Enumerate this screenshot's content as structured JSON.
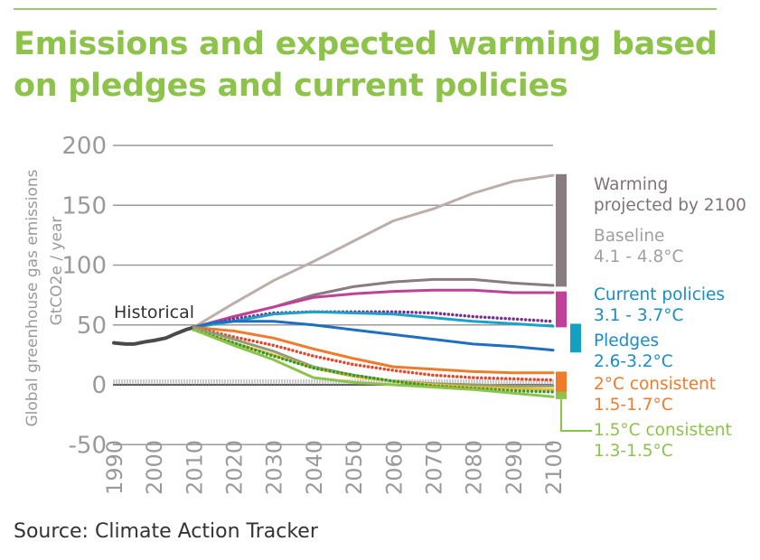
{
  "title_lines": [
    "Emissions and expected warming based",
    "on pledges and current policies"
  ],
  "source": "Source: Climate Action Tracker",
  "chart_data": {
    "type": "line",
    "title": "Emissions and expected warming based on pledges and current policies",
    "ylabel_line1": "Global greenhouse gas emissions",
    "ylabel_line2": "GtCO2e / year",
    "ylim": [
      -50,
      200
    ],
    "xlim": [
      1990,
      2100
    ],
    "yticks": [
      "200",
      "150",
      "100",
      "50",
      "0",
      "-50"
    ],
    "ytick_values": [
      200,
      150,
      100,
      50,
      0,
      -50
    ],
    "xticks": [
      "1990",
      "2000",
      "2010",
      "2020",
      "2030",
      "2040",
      "2050",
      "2060",
      "2070",
      "2080",
      "2090",
      "2100"
    ],
    "grid": true,
    "annotation": "Historical",
    "series": [
      {
        "name": "Historical",
        "color": "#4a4a4a",
        "style": "solid",
        "x": [
          1990,
          1993,
          1995,
          1998,
          2000,
          2003,
          2005,
          2008,
          2010
        ],
        "y": [
          35,
          34,
          34,
          36,
          37,
          39,
          42,
          46,
          48
        ]
      },
      {
        "name": "Baseline",
        "color": "#bcaea8",
        "style": "solid",
        "x": [
          2010,
          2020,
          2030,
          2040,
          2050,
          2060,
          2070,
          2080,
          2090,
          2100
        ],
        "y": [
          48,
          68,
          87,
          103,
          120,
          137,
          147,
          160,
          170,
          175
        ]
      },
      {
        "name": "Current policies upper",
        "color": "#8a7a82",
        "style": "solid",
        "x": [
          2010,
          2020,
          2030,
          2040,
          2050,
          2060,
          2070,
          2080,
          2090,
          2100
        ],
        "y": [
          48,
          57,
          65,
          75,
          82,
          86,
          88,
          88,
          85,
          83
        ]
      },
      {
        "name": "Current policies",
        "color": "#c1409a",
        "style": "solid",
        "x": [
          2010,
          2020,
          2030,
          2040,
          2050,
          2060,
          2070,
          2080,
          2090,
          2100
        ],
        "y": [
          48,
          57,
          65,
          73,
          76,
          78,
          79,
          79,
          77,
          77
        ]
      },
      {
        "name": "Pledges upper",
        "color": "#7b2d8e",
        "style": "dotted",
        "x": [
          2010,
          2020,
          2030,
          2040,
          2050,
          2060,
          2070,
          2080,
          2090,
          2100
        ],
        "y": [
          48,
          55,
          60,
          61,
          61,
          61,
          60,
          57,
          55,
          53
        ]
      },
      {
        "name": "Pledges",
        "color": "#1aa3c8",
        "style": "solid",
        "x": [
          2010,
          2020,
          2030,
          2040,
          2050,
          2060,
          2070,
          2080,
          2090,
          2100
        ],
        "y": [
          48,
          53,
          59,
          61,
          60,
          59,
          56,
          53,
          51,
          49
        ]
      },
      {
        "name": "Pledges lower",
        "color": "#1f6fbf",
        "style": "solid",
        "x": [
          2010,
          2015,
          2020,
          2030,
          2040,
          2050,
          2060,
          2070,
          2080,
          2090,
          2100
        ],
        "y": [
          48,
          52,
          53,
          53,
          50,
          46,
          42,
          38,
          34,
          32,
          29
        ]
      },
      {
        "name": "2°C consistent upper",
        "color": "#f07b2a",
        "style": "solid",
        "x": [
          2010,
          2020,
          2030,
          2040,
          2050,
          2060,
          2070,
          2080,
          2090,
          2100
        ],
        "y": [
          48,
          45,
          39,
          30,
          22,
          15,
          13,
          11,
          10,
          10
        ]
      },
      {
        "name": "2°C consistent",
        "color": "#e8442a",
        "style": "dotted",
        "x": [
          2010,
          2020,
          2030,
          2040,
          2050,
          2060,
          2070,
          2080,
          2090,
          2100
        ],
        "y": [
          48,
          40,
          33,
          24,
          17,
          12,
          8,
          6,
          5,
          4
        ]
      },
      {
        "name": "2°C consistent lower",
        "color": "#8e9e7a",
        "style": "solid",
        "x": [
          2010,
          2020,
          2030,
          2040,
          2050,
          2060,
          2070,
          2080,
          2090,
          2100
        ],
        "y": [
          48,
          38,
          28,
          15,
          8,
          3,
          1,
          0,
          -1,
          -1
        ]
      },
      {
        "name": "1.5°C consistent upper",
        "color": "#f2b92a",
        "style": "solid",
        "x": [
          2010,
          2020,
          2030,
          2040,
          2050,
          2060,
          2070,
          2080,
          2090,
          2100
        ],
        "y": [
          46,
          35,
          25,
          14,
          7,
          3,
          0,
          -2,
          -3,
          -4
        ]
      },
      {
        "name": "1.5°C consistent",
        "color": "#2e9a3a",
        "style": "dotted",
        "x": [
          2010,
          2020,
          2030,
          2040,
          2050,
          2060,
          2070,
          2080,
          2090,
          2100
        ],
        "y": [
          46,
          35,
          24,
          14,
          8,
          3,
          -1,
          -3,
          -5,
          -6
        ]
      },
      {
        "name": "1.5°C consistent lower",
        "color": "#8dc34a",
        "style": "solid",
        "x": [
          2010,
          2020,
          2030,
          2040,
          2050,
          2060,
          2070,
          2080,
          2090,
          2100
        ],
        "y": [
          46,
          33,
          21,
          6,
          2,
          0,
          -2,
          -4,
          -7,
          -10
        ]
      }
    ],
    "warming_bars": [
      {
        "name": "Baseline",
        "from": 82,
        "to": 176,
        "color": "#8a7a82"
      },
      {
        "name": "Current policies",
        "from": 48,
        "to": 78,
        "color": "#c1409a"
      },
      {
        "name": "Pledges",
        "from": 27,
        "to": 51,
        "color": "#14a0c0"
      },
      {
        "name": "2°C consistent",
        "from": -6,
        "to": 11,
        "color": "#f07b2a"
      },
      {
        "name": "1.5°C consistent",
        "from": -12,
        "to": -6,
        "color": "#8dc34a"
      }
    ],
    "legend": {
      "heading": [
        "Warming",
        "projected by 2100"
      ],
      "items": [
        {
          "label": "Baseline",
          "range": "4.1 - 4.8°C",
          "color": "#a0a0a0"
        },
        {
          "label": "Current policies",
          "range": "3.1 - 3.7°C",
          "color": "#1a8cc8"
        },
        {
          "label": "Pledges",
          "range": "2.6-3.2°C",
          "color": "#1a8cc8"
        },
        {
          "label": "2°C consistent",
          "range": "1.5-1.7°C",
          "color": "#f07b2a"
        },
        {
          "label": "1.5°C consistent",
          "range": "1.3-1.5°C",
          "color": "#8dc34a"
        }
      ]
    }
  }
}
